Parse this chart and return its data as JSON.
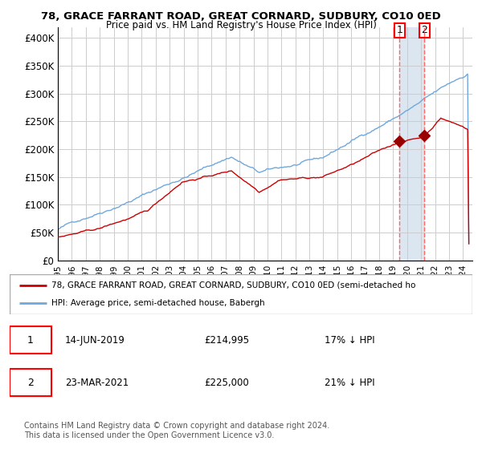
{
  "title": "78, GRACE FARRANT ROAD, GREAT CORNARD, SUDBURY, CO10 0ED",
  "subtitle": "Price paid vs. HM Land Registry's House Price Index (HPI)",
  "legend_line1": "78, GRACE FARRANT ROAD, GREAT CORNARD, SUDBURY, CO10 0ED (semi-detached ho",
  "legend_line2": "HPI: Average price, semi-detached house, Babergh",
  "footer": "Contains HM Land Registry data © Crown copyright and database right 2024.\nThis data is licensed under the Open Government Licence v3.0.",
  "sale1_date": "14-JUN-2019",
  "sale1_price": "£214,995",
  "sale1_hpi": "17% ↓ HPI",
  "sale2_date": "23-MAR-2021",
  "sale2_price": "£225,000",
  "sale2_hpi": "21% ↓ HPI",
  "hpi_color": "#6fa8dc",
  "price_color": "#cc0000",
  "highlight_color": "#dce6f1",
  "vline_color": "#ff6666",
  "marker_color": "#990000",
  "ylabel_color": "#000000",
  "grid_color": "#cccccc",
  "ylim": [
    0,
    420000
  ],
  "yticks": [
    0,
    50000,
    100000,
    150000,
    200000,
    250000,
    300000,
    350000,
    400000
  ],
  "ytick_labels": [
    "£0",
    "£50K",
    "£100K",
    "£150K",
    "£200K",
    "£250K",
    "£300K",
    "£350K",
    "£400K"
  ]
}
